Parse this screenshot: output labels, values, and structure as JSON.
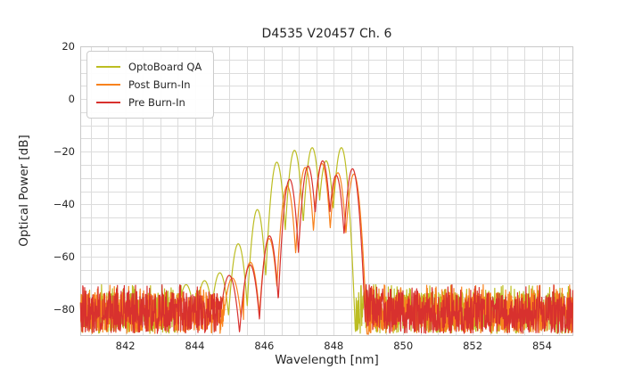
{
  "chart_data": {
    "type": "line",
    "title": "D4535 V20457 Ch. 6",
    "xlabel": "Wavelength [nm]",
    "ylabel": "Optical Power [dB]",
    "xlim": [
      840.7,
      854.9
    ],
    "ylim": [
      -90,
      20
    ],
    "xticks": [
      842,
      844,
      846,
      848,
      850,
      852,
      854
    ],
    "yticks": [
      20,
      0,
      -20,
      -40,
      -60,
      -80
    ],
    "grid": true,
    "minor_grid_x_nm": 0.5,
    "minor_grid_y_db": 5,
    "grid_color": "#dcdcdc",
    "spine_color": "#c9c9c9",
    "legend_position": "upper-left",
    "noise_floor_db": {
      "typical_top": -73.5,
      "typical_bottom": -89,
      "spike_top": -70.5
    },
    "signal_band_nm": [
      845.0,
      849.0
    ],
    "mode_dip_depth_db_at_half_spacing": 27,
    "series": [
      {
        "name": "OptoBoard QA",
        "color": "#bcbd22",
        "noise_left_end_nm": 844.15,
        "noise_right_start_nm": 848.62,
        "modes": [
          [
            843.75,
            -70.5
          ],
          [
            844.28,
            -69
          ],
          [
            844.72,
            -66
          ],
          [
            845.25,
            -55
          ],
          [
            845.8,
            -42
          ],
          [
            846.36,
            -24
          ],
          [
            846.87,
            -19.5
          ],
          [
            847.38,
            -18.5
          ],
          [
            847.78,
            -23.5
          ],
          [
            848.22,
            -18.5
          ]
        ]
      },
      {
        "name": "Post Burn-In",
        "color": "#f8821d",
        "noise_left_end_nm": 845.05,
        "noise_right_start_nm": 849.0,
        "notch": [
          845.4,
          -85
        ],
        "modes": [
          [
            845.08,
            -68
          ],
          [
            845.6,
            -62
          ],
          [
            846.14,
            -53
          ],
          [
            846.66,
            -33
          ],
          [
            847.18,
            -26
          ],
          [
            847.66,
            -24.5
          ],
          [
            848.12,
            -28
          ],
          [
            848.58,
            -28.5
          ]
        ]
      },
      {
        "name": "Pre Burn-In",
        "color": "#d8312e",
        "noise_left_end_nm": 845.0,
        "noise_right_start_nm": 848.9,
        "modes": [
          [
            844.99,
            -67
          ],
          [
            845.59,
            -63
          ],
          [
            846.15,
            -52
          ],
          [
            846.73,
            -30.5
          ],
          [
            847.26,
            -25.5
          ],
          [
            847.68,
            -23.5
          ],
          [
            848.07,
            -29
          ],
          [
            848.54,
            -26.5
          ]
        ]
      }
    ]
  }
}
